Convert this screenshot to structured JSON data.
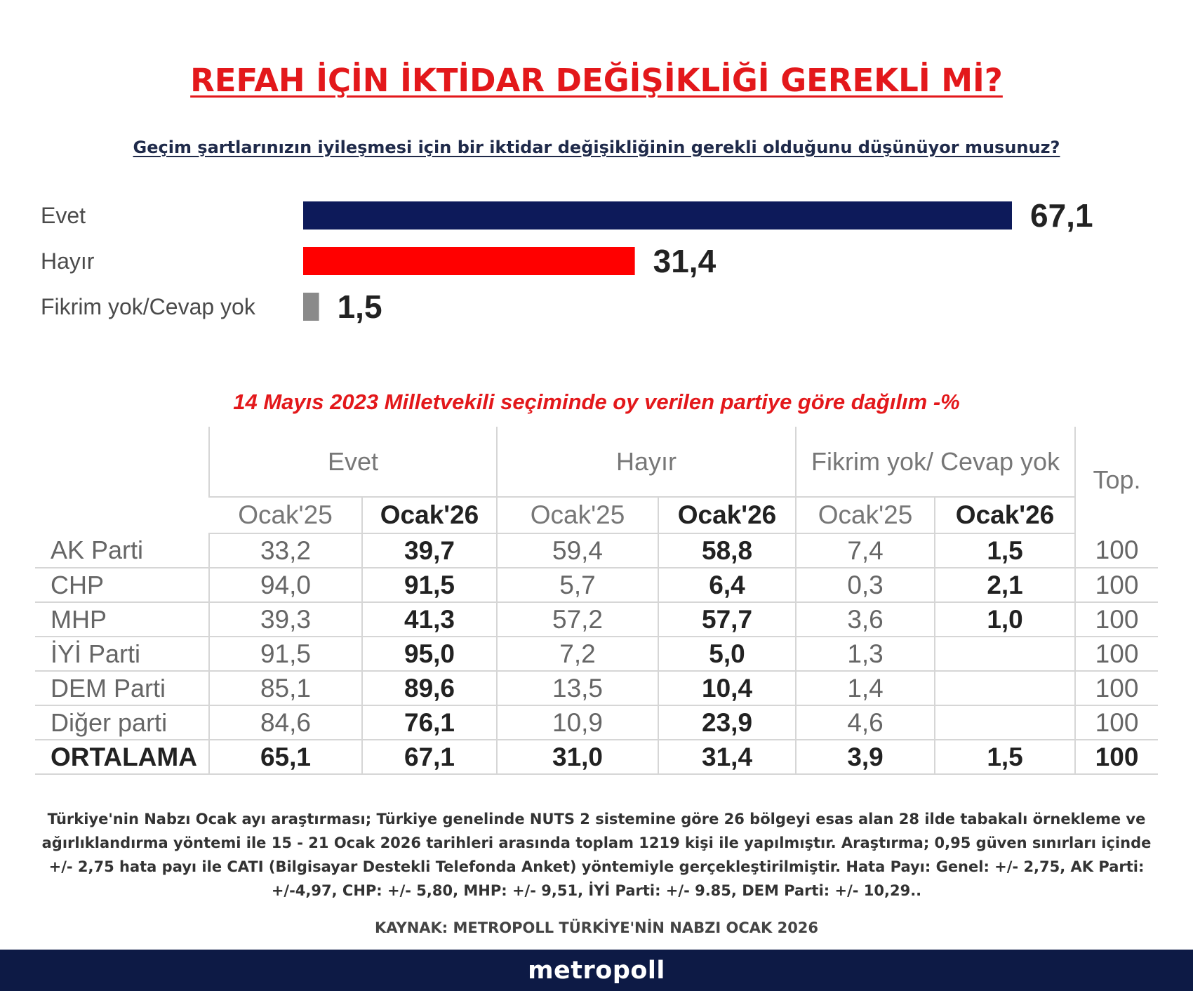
{
  "title": "REFAH İÇİN İKTİDAR DEĞİŞİKLİĞİ GEREKLİ Mİ?",
  "subtitle": "Geçim şartlarınızın iyileşmesi için bir iktidar değişikliğinin gerekli olduğunu düşünüyor musunuz?",
  "chart_data": {
    "type": "bar",
    "orientation": "horizontal",
    "categories": [
      "Evet",
      "Hayır",
      "Fikrim yok/Cevap yok"
    ],
    "values": [
      67.1,
      31.4,
      1.5
    ],
    "value_labels": [
      "67,1",
      "31,4",
      "1,5"
    ],
    "colors": [
      "#0d1a5a",
      "#ff0000",
      "#8a8a8a"
    ],
    "xlim": [
      0,
      100
    ],
    "grid": false
  },
  "table_caption": "14 Mayıs 2023 Milletvekili seçiminde oy verilen partiye göre dağılım -%",
  "table": {
    "groups": [
      "Evet",
      "Hayır",
      "Fikrim yok/ Cevap yok"
    ],
    "total_header": "Top.",
    "periods": [
      "Ocak'25",
      "Ocak'26"
    ],
    "rows": [
      {
        "party": "AK Parti",
        "values": [
          "33,2",
          "39,7",
          "59,4",
          "58,8",
          "7,4",
          "1,5",
          "100"
        ]
      },
      {
        "party": "CHP",
        "values": [
          "94,0",
          "91,5",
          "5,7",
          "6,4",
          "0,3",
          "2,1",
          "100"
        ]
      },
      {
        "party": "MHP",
        "values": [
          "39,3",
          "41,3",
          "57,2",
          "57,7",
          "3,6",
          "1,0",
          "100"
        ]
      },
      {
        "party": "İYİ Parti",
        "values": [
          "91,5",
          "95,0",
          "7,2",
          "5,0",
          "1,3",
          "",
          "100"
        ]
      },
      {
        "party": "DEM Parti",
        "values": [
          "85,1",
          "89,6",
          "13,5",
          "10,4",
          "1,4",
          "",
          "100"
        ]
      },
      {
        "party": "Diğer parti",
        "values": [
          "84,6",
          "76,1",
          "10,9",
          "23,9",
          "4,6",
          "",
          "100"
        ]
      }
    ],
    "average": {
      "party": "ORTALAMA",
      "values": [
        "65,1",
        "67,1",
        "31,0",
        "31,4",
        "3,9",
        "1,5",
        "100"
      ]
    }
  },
  "footnote": "Türkiye'nin Nabzı Ocak ayı araştırması; Türkiye genelinde NUTS 2 sistemine göre 26 bölgeyi esas alan 28 ilde tabakalı örnekleme ve ağırlıklandırma yöntemi ile 15 - 21 Ocak 2026 tarihleri arasında toplam 1219 kişi ile yapılmıştır. Araştırma; 0,95 güven sınırları içinde +/- 2,75 hata payı ile CATI (Bilgisayar Destekli Telefonda Anket) yöntemiyle gerçekleştirilmiştir. Hata Payı: Genel: +/- 2,75, AK Parti: +/-4,97, CHP: +/- 5,80, MHP: +/- 9,51, İYİ Parti: +/- 9.85, DEM Parti: +/- 10,29..",
  "source": "KAYNAK: METROPOLL TÜRKİYE'NİN NABZI OCAK 2026",
  "logo": "metropoll"
}
